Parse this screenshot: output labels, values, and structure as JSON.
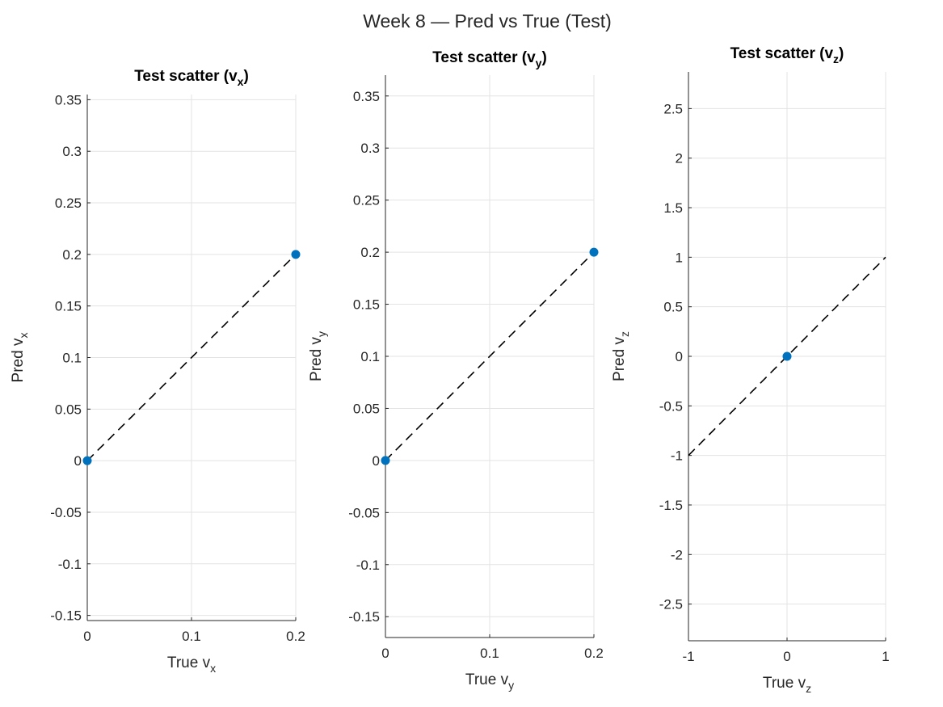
{
  "figure": {
    "suptitle": "Week 8 — Pred vs True (Test)"
  },
  "chart_data": [
    {
      "type": "scatter",
      "title": "Test scatter (v",
      "title_sub": "x",
      "title_tail": ")",
      "xlabel": "True v",
      "xlabel_sub": "x",
      "ylabel": "Pred v",
      "ylabel_sub": "x",
      "xlim": [
        0,
        0.2
      ],
      "ylim": [
        -0.155,
        0.355
      ],
      "xticks": [
        0,
        0.1,
        0.2
      ],
      "xtick_labels": [
        "0",
        "0.1",
        "0.2"
      ],
      "yticks": [
        -0.15,
        -0.1,
        -0.05,
        0,
        0.05,
        0.1,
        0.15,
        0.2,
        0.25,
        0.3,
        0.35
      ],
      "ytick_labels": [
        "-0.15",
        "-0.1",
        "-0.05",
        "0",
        "0.05",
        "0.1",
        "0.15",
        "0.2",
        "0.25",
        "0.3",
        "0.35"
      ],
      "grid": true,
      "points": [
        {
          "x": 0,
          "y": 0
        },
        {
          "x": 0.2,
          "y": 0.2
        }
      ],
      "reference_line": {
        "x": [
          0,
          0.2
        ],
        "y": [
          0,
          0.2
        ],
        "style": "dashed",
        "color": "#000000"
      },
      "marker_color": "#0072bd"
    },
    {
      "type": "scatter",
      "title": "Test scatter (v",
      "title_sub": "y",
      "title_tail": ")",
      "xlabel": "True v",
      "xlabel_sub": "y",
      "ylabel": "Pred v",
      "ylabel_sub": "y",
      "xlim": [
        0,
        0.2
      ],
      "ylim": [
        -0.17,
        0.37
      ],
      "xticks": [
        0,
        0.1,
        0.2
      ],
      "xtick_labels": [
        "0",
        "0.1",
        "0.2"
      ],
      "yticks": [
        -0.15,
        -0.1,
        -0.05,
        0,
        0.05,
        0.1,
        0.15,
        0.2,
        0.25,
        0.3,
        0.35
      ],
      "ytick_labels": [
        "-0.15",
        "-0.1",
        "-0.05",
        "0",
        "0.05",
        "0.1",
        "0.15",
        "0.2",
        "0.25",
        "0.3",
        "0.35"
      ],
      "grid": true,
      "points": [
        {
          "x": 0,
          "y": 0
        },
        {
          "x": 0.2,
          "y": 0.2
        }
      ],
      "reference_line": {
        "x": [
          0,
          0.2
        ],
        "y": [
          0,
          0.2
        ],
        "style": "dashed",
        "color": "#000000"
      },
      "marker_color": "#0072bd"
    },
    {
      "type": "scatter",
      "title": "Test scatter (v",
      "title_sub": "z",
      "title_tail": ")",
      "xlabel": "True v",
      "xlabel_sub": "z",
      "ylabel": "Pred v",
      "ylabel_sub": "z",
      "xlim": [
        -1,
        1
      ],
      "ylim": [
        -2.87,
        2.87
      ],
      "xticks": [
        -1,
        0,
        1
      ],
      "xtick_labels": [
        "-1",
        "0",
        "1"
      ],
      "yticks": [
        -2.5,
        -2,
        -1.5,
        -1,
        -0.5,
        0,
        0.5,
        1,
        1.5,
        2,
        2.5
      ],
      "ytick_labels": [
        "-2.5",
        "-2",
        "-1.5",
        "-1",
        "-0.5",
        "0",
        "0.5",
        "1",
        "1.5",
        "2",
        "2.5"
      ],
      "grid": true,
      "points": [
        {
          "x": 0,
          "y": 0
        }
      ],
      "reference_line": {
        "x": [
          -1,
          1
        ],
        "y": [
          -1,
          1
        ],
        "style": "dashed",
        "color": "#000000"
      },
      "marker_color": "#0072bd"
    }
  ]
}
